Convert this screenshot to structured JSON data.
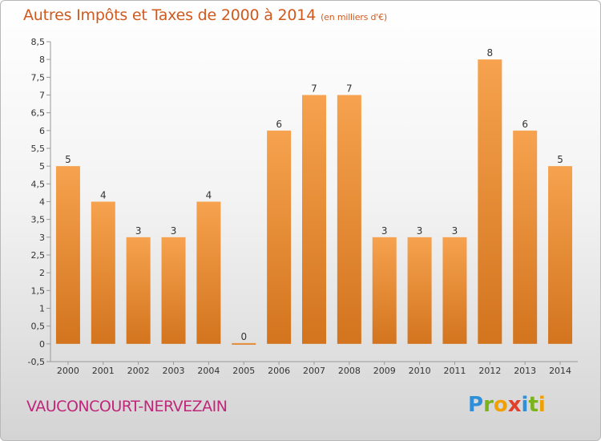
{
  "title": "Autres Impôts et Taxes de 2000 à 2014",
  "unit": "(en milliers d'€)",
  "commune": "VAUCONCOURT-NERVEZAIN",
  "logo": {
    "p": "P",
    "r": "r",
    "o": "o",
    "x": "x",
    "i1": "i",
    "t": "t",
    "i2": "i"
  },
  "colors": {
    "bar_light": "#f6a24e",
    "bar_dark": "#d3741e",
    "title": "#d05a1e",
    "commune": "#c0267a"
  },
  "chart_data": {
    "type": "bar",
    "categories": [
      "2000",
      "2001",
      "2002",
      "2003",
      "2004",
      "2005",
      "2006",
      "2007",
      "2008",
      "2009",
      "2010",
      "2011",
      "2012",
      "2013",
      "2014"
    ],
    "values": [
      5,
      4,
      3,
      3,
      4,
      0,
      6,
      7,
      7,
      3,
      3,
      3,
      8,
      6,
      5
    ],
    "yticks": [
      "-0,5",
      "0",
      "0,5",
      "1",
      "1,5",
      "2",
      "2,5",
      "3",
      "3,5",
      "4",
      "4,5",
      "5",
      "5,5",
      "6",
      "6,5",
      "7",
      "7,5",
      "8",
      "8,5"
    ],
    "ylim": [
      -0.5,
      8.5
    ],
    "grid": false
  }
}
